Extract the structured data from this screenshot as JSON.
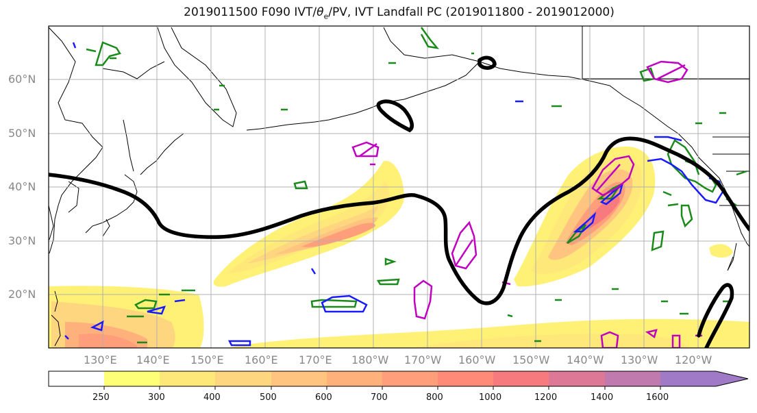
{
  "title_prefix": "2019011500 F090 IVT/",
  "title_theta": "θ",
  "title_sub": "e",
  "title_suffix": "/PV, IVT Landfall PC (2019011800 - 2019012000)",
  "lat_labels": [
    "60°N",
    "50°N",
    "40°N",
    "30°N",
    "20°N"
  ],
  "lon_labels": [
    "130°E",
    "140°E",
    "150°E",
    "160°E",
    "170°E",
    "180°W",
    "170°W",
    "160°W",
    "150°W",
    "140°W",
    "130°W",
    "120°W"
  ],
  "colorbar": {
    "ticks": [
      "250",
      "300",
      "400",
      "500",
      "600",
      "700",
      "800",
      "1000",
      "1200",
      "1400",
      "1600"
    ],
    "colors": [
      "#ffffff",
      "#ffff77",
      "#ffe87a",
      "#ffd680",
      "#ffc47f",
      "#ffb17c",
      "#ff9e7a",
      "#ff8a77",
      "#f77a7e",
      "#dd7996",
      "#c07aae",
      "#a07ac6"
    ]
  },
  "legend_colors": {
    "ivt_low": "#fff176",
    "ivt_mid": "#ffb380",
    "ivt_high": "#ff8080",
    "pv_contour": "#000000",
    "theta_green": "#1a8a1a",
    "theta_blue": "#1a1aff",
    "theta_magenta": "#c000c0",
    "coastline": "#000000",
    "grid": "#bbbbbb"
  }
}
